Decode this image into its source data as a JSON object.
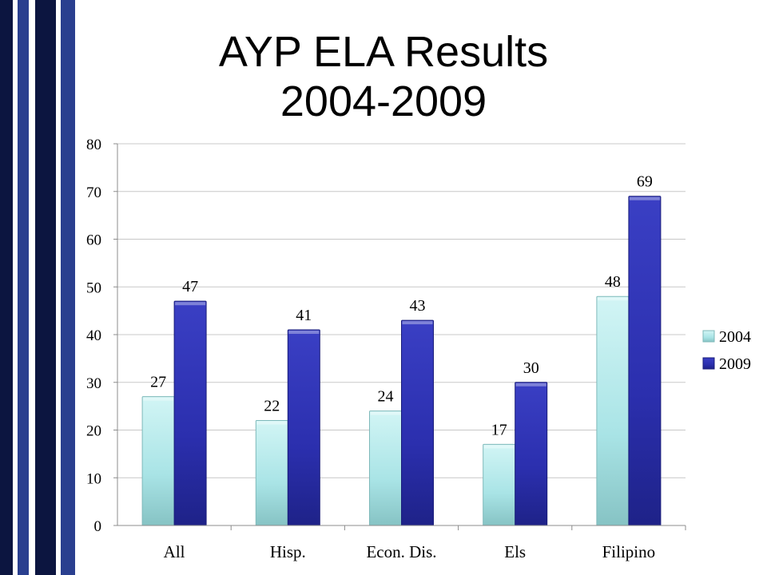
{
  "slide": {
    "title_line1": "AYP ELA Results",
    "title_line2": "2004-2009"
  },
  "colors": {
    "stripe_navy": "#0c1540",
    "stripe_blue": "#2a3f8f",
    "stripe_light": "#ffffff",
    "series_2004": "#a9e4e6",
    "series_2009": "#2b2fae",
    "gridline": "#c8c8c8"
  },
  "chart_data": {
    "type": "bar",
    "title": "",
    "xlabel": "",
    "ylabel": "",
    "categories": [
      "All",
      "Hisp.",
      "Econ. Dis.",
      "Els",
      "Filipino"
    ],
    "series": [
      {
        "name": "2004",
        "values": [
          27,
          22,
          24,
          17,
          48
        ]
      },
      {
        "name": "2009",
        "values": [
          47,
          41,
          43,
          30,
          69
        ]
      }
    ],
    "ylim": [
      0,
      80
    ],
    "yticks": [
      0,
      10,
      20,
      30,
      40,
      50,
      60,
      70,
      80
    ],
    "grid": true,
    "legend_position": "right",
    "data_labels": true
  }
}
